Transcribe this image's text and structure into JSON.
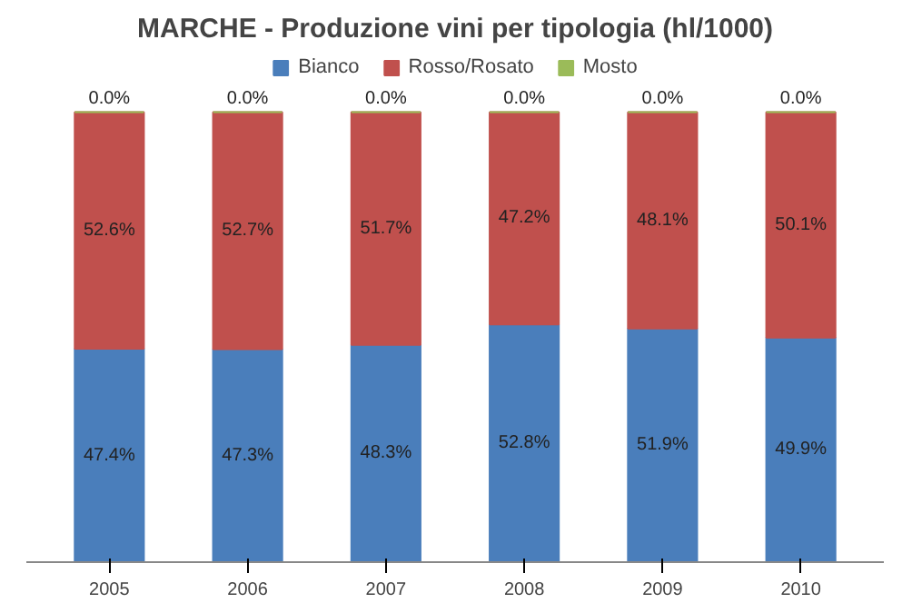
{
  "chart_data": {
    "type": "bar",
    "title": "MARCHE - Produzione vini per tipologia (hl/1000)",
    "categories": [
      "2005",
      "2006",
      "2007",
      "2008",
      "2009",
      "2010"
    ],
    "stacked": true,
    "legend": "top",
    "grid": false,
    "series": [
      {
        "name": "Bianco",
        "color": "#4a7ebb",
        "values": [
          47.4,
          47.3,
          48.3,
          52.8,
          51.9,
          49.9
        ],
        "value_labels": [
          "47.4%",
          "47.3%",
          "48.3%",
          "52.8%",
          "51.9%",
          "49.9%"
        ]
      },
      {
        "name": "Rosso/Rosato",
        "color": "#c0504d",
        "values": [
          52.6,
          52.7,
          51.7,
          47.2,
          48.1,
          50.1
        ],
        "value_labels": [
          "52.6%",
          "52.7%",
          "51.7%",
          "47.2%",
          "48.1%",
          "50.1%"
        ]
      },
      {
        "name": "Mosto",
        "color": "#9bbb59",
        "values": [
          0.0,
          0.0,
          0.0,
          0.0,
          0.0,
          0.0
        ],
        "value_labels": [
          "0.0%",
          "0.0%",
          "0.0%",
          "0.0%",
          "0.0%",
          "0.0%"
        ]
      }
    ]
  }
}
